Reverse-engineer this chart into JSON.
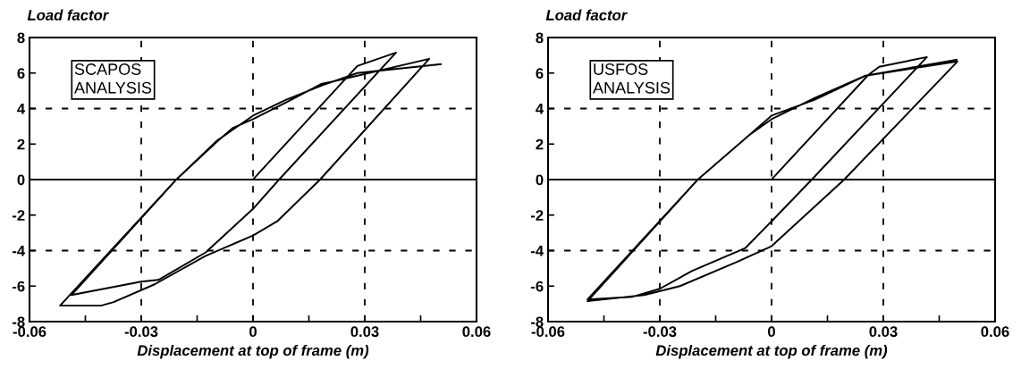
{
  "chart_data": [
    {
      "type": "line",
      "ylabel": "Load factor",
      "xlabel": "Displacement at top of frame (m)",
      "annotations": [
        "SCAPOS\nANALYSIS"
      ],
      "xlim": [
        -0.06,
        0.06
      ],
      "ylim": [
        -8,
        8
      ],
      "xticks": [
        -0.06,
        {
          "value": -0.045,
          "label": null
        },
        -0.03,
        {
          "value": -0.015,
          "label": null
        },
        0,
        {
          "value": 0.015,
          "label": null
        },
        0.03,
        {
          "value": 0.045,
          "label": null
        },
        0.06
      ],
      "yticks": [
        -8,
        -6,
        -4,
        -2,
        0,
        2,
        4,
        6,
        8
      ],
      "ref_lines": [
        {
          "axis": "x",
          "value": -0.03,
          "line_style": "dashed"
        },
        {
          "axis": "x",
          "value": 0,
          "line_style": "dashed"
        },
        {
          "axis": "x",
          "value": 0.03,
          "line_style": "dashed"
        },
        {
          "axis": "y",
          "value": -4,
          "line_style": "dashed"
        },
        {
          "axis": "y",
          "value": 4,
          "line_style": "dashed"
        },
        {
          "axis": "y",
          "value": 0,
          "line_style": "solid"
        }
      ],
      "marker": "none",
      "line_style": "solid",
      "series": [
        {
          "color": "#000000",
          "x": [
            0,
            0.028,
            0.0384,
            0.007,
            0,
            -0.0127,
            -0.0254,
            -0.03,
            -0.0463,
            -0.0487,
            -0.0206,
            -0.0096,
            -0.0055,
            0,
            0.0089,
            0.0185,
            0.0209,
            0.0473,
            0.018,
            0.0065,
            0,
            -0.0127,
            -0.0264,
            -0.0374,
            -0.0408,
            -0.0518,
            -0.0206,
            -0.0096,
            0,
            0.0089,
            0.0185,
            0.028,
            0.0504
          ],
          "values": [
            0,
            6.4,
            7.15,
            0,
            -1.65,
            -4.1,
            -5.65,
            -5.75,
            -6.4,
            -6.5,
            0,
            2.15,
            2.9,
            3.4,
            4.35,
            5.4,
            5.5,
            6.8,
            0,
            -2.35,
            -3.15,
            -4.3,
            -5.9,
            -6.9,
            -7.1,
            -7.1,
            0,
            2.2,
            3.6,
            4.5,
            5.3,
            6.0,
            6.5
          ]
        }
      ]
    },
    {
      "type": "line",
      "ylabel": "Load factor",
      "xlabel": "Displacement at top of frame (m)",
      "annotations": [
        "USFOS\nANALYSIS"
      ],
      "xlim": [
        -0.06,
        0.06
      ],
      "ylim": [
        -8,
        8
      ],
      "xticks": [
        -0.06,
        {
          "value": -0.045,
          "label": null
        },
        -0.03,
        {
          "value": -0.015,
          "label": null
        },
        0,
        {
          "value": 0.015,
          "label": null
        },
        0.03,
        {
          "value": 0.045,
          "label": null
        },
        0.06
      ],
      "yticks": [
        -8,
        -6,
        -4,
        -2,
        0,
        2,
        4,
        6,
        8
      ],
      "ref_lines": [
        {
          "axis": "x",
          "value": -0.03,
          "line_style": "dashed"
        },
        {
          "axis": "x",
          "value": 0,
          "line_style": "dashed"
        },
        {
          "axis": "x",
          "value": 0.03,
          "line_style": "dashed"
        },
        {
          "axis": "y",
          "value": -4,
          "line_style": "dashed"
        },
        {
          "axis": "y",
          "value": 4,
          "line_style": "dashed"
        },
        {
          "axis": "y",
          "value": 0,
          "line_style": "solid"
        }
      ],
      "marker": "none",
      "line_style": "solid",
      "series": [
        {
          "color": "#000000",
          "x": [
            0,
            0.026,
            0.0289,
            0.0417,
            0.0108,
            0,
            -0.007,
            -0.0214,
            -0.03,
            -0.0373,
            -0.0494,
            -0.0198,
            -0.006,
            0,
            0.0116,
            0.0253,
            0.0499,
            0.0195,
            0,
            -0.0094,
            -0.0246,
            -0.0342,
            -0.0494,
            -0.0198,
            -0.006,
            0,
            0.0116,
            0.0252,
            0.0497
          ],
          "values": [
            0,
            5.9,
            6.35,
            6.9,
            0,
            -2.35,
            -3.85,
            -5.15,
            -6.15,
            -6.6,
            -6.75,
            0,
            2.5,
            3.6,
            4.5,
            5.85,
            6.65,
            0,
            -3.75,
            -4.65,
            -6.0,
            -6.5,
            -6.85,
            0,
            2.5,
            3.4,
            4.6,
            5.85,
            6.75
          ]
        }
      ]
    }
  ]
}
